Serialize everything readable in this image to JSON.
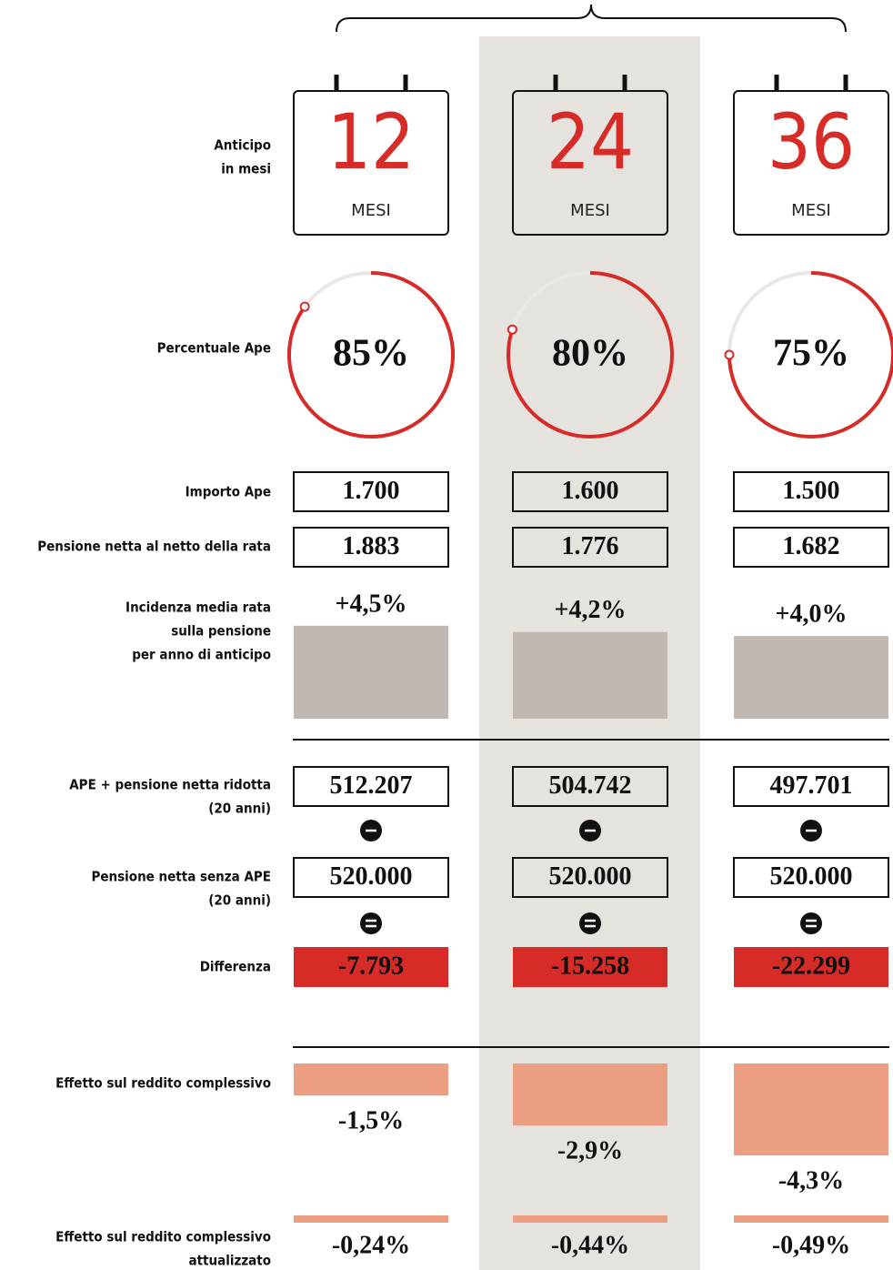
{
  "row_labels": [
    [
      "Anticipo",
      "in mesi"
    ],
    [
      "Percentuale Ape"
    ],
    [
      "Importo Ape"
    ],
    [
      "Pensione netta al netto della rata"
    ],
    [
      "Incidenza media rata",
      "sulla pensione",
      "per anno di anticipo"
    ],
    [
      "APE + pensione netta ridotta",
      "(20 anni)"
    ],
    [
      "Pensione netta senza APE",
      "(20 anni)"
    ],
    [
      "Differenza"
    ],
    [
      "Effetto sul reddito complessivo"
    ],
    [
      "Effetto sul reddito complessivo",
      "attualizzato"
    ]
  ],
  "columns": [
    {
      "months": "12",
      "months_unit": "MESI",
      "ape_percent": {
        "value": 85,
        "label": "85%"
      },
      "importo": "1.700",
      "pensione_netta": "1.883",
      "incidenza": {
        "value": 4.5,
        "label": "+4,5%"
      },
      "ape_pensione": "512.207",
      "pensione_senza": "520.000",
      "differenza": "-7.793",
      "effetto": {
        "value": -1.5,
        "label": "-1,5%"
      },
      "effetto_attualizzato": "-0,24%"
    },
    {
      "months": "24",
      "months_unit": "MESI",
      "ape_percent": {
        "value": 80,
        "label": "80%"
      },
      "importo": "1.600",
      "pensione_netta": "1.776",
      "incidenza": {
        "value": 4.2,
        "label": "+4,2%"
      },
      "ape_pensione": "504.742",
      "pensione_senza": "520.000",
      "differenza": "-15.258",
      "effetto": {
        "value": -2.9,
        "label": "-2,9%"
      },
      "effetto_attualizzato": "-0,44%"
    },
    {
      "months": "36",
      "months_unit": "MESI",
      "ape_percent": {
        "value": 75,
        "label": "75%"
      },
      "importo": "1.500",
      "pensione_netta": "1.682",
      "incidenza": {
        "value": 4.0,
        "label": "+4,0%"
      },
      "ape_pensione": "497.701",
      "pensione_senza": "520.000",
      "differenza": "-22.299",
      "effetto": {
        "value": -4.3,
        "label": "-4,3%"
      },
      "effetto_attualizzato": "-0,49%"
    }
  ]
}
